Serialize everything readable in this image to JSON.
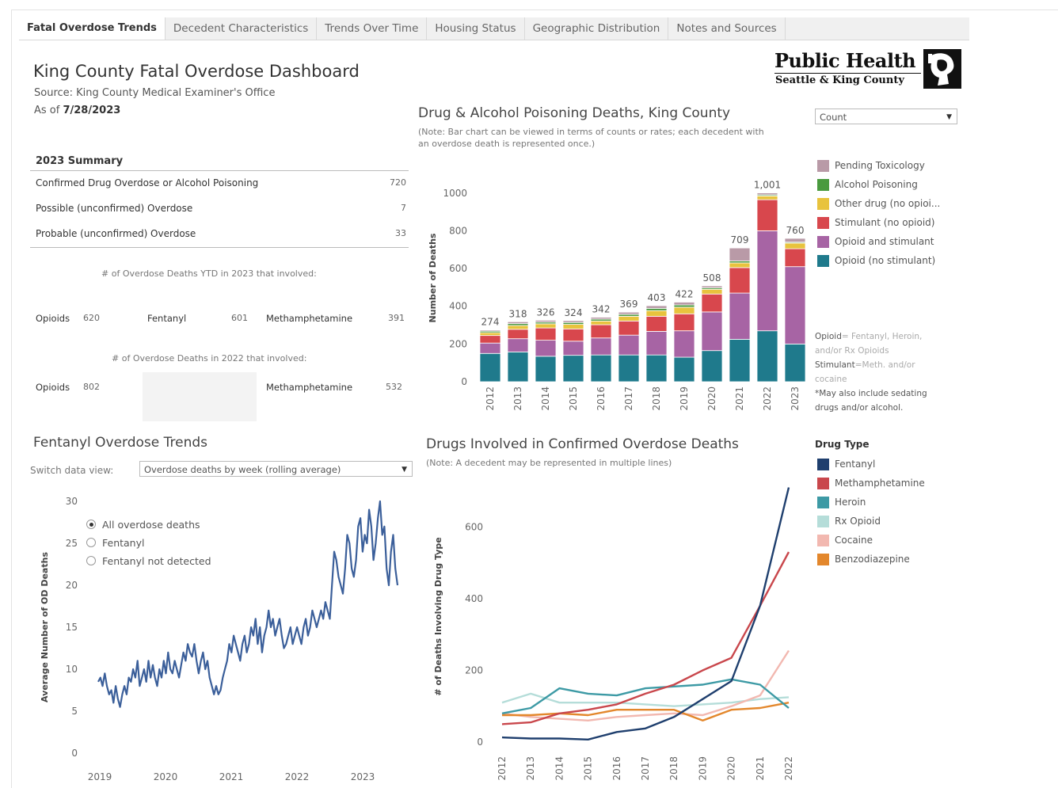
{
  "tabs": [
    "Fatal Overdose Trends",
    "Decedent Characteristics",
    "Trends Over Time",
    "Housing Status",
    "Geographic Distribution",
    "Notes and Sources"
  ],
  "header": {
    "title": "King County Fatal Overdose Dashboard",
    "source": "Source: King County Medical Examiner's Office",
    "asof_label": "As of ",
    "asof_date": "7/28/2023"
  },
  "logo": {
    "name": "Public Health",
    "sub": "Seattle & King County"
  },
  "summary": {
    "heading": "2023 Summary",
    "rows": [
      {
        "label": "Confirmed Drug Overdose or Alcohol Poisoning",
        "value": "720"
      },
      {
        "label": "Possible (unconfirmed) Overdose",
        "value": "7"
      },
      {
        "label": "Probable (unconfirmed) Overdose",
        "value": "33"
      }
    ],
    "ytd_note": "# of Overdose Deaths YTD in 2023 that involved:",
    "ytd": {
      "opioids_label": "Opioids",
      "opioids": "620",
      "fentanyl_label": "Fentanyl",
      "fentanyl": "601",
      "meth_label": "Methamphetamine",
      "meth": "391"
    },
    "y2022_note": "# of Overdose Deaths in 2022 that involved:",
    "y2022": {
      "opioids_label": "Opioids",
      "opioids": "802",
      "meth_label": "Methamphetamine",
      "meth": "532"
    }
  },
  "bar_panel": {
    "title": "Drug & Alcohol Poisoning Deaths, King County",
    "note1": "(Note: Bar chart can be viewed in terms of counts or rates; each decedent with",
    "note2": "an overdose death is represented once.)",
    "dropdown": "Count",
    "legend": [
      {
        "label": "Pending Toxicology",
        "color": "#b99aa7"
      },
      {
        "label": "Alcohol Poisoning",
        "color": "#4a9a3f"
      },
      {
        "label": "Other drug (no opioi...",
        "color": "#e8c33d"
      },
      {
        "label": "Stimulant (no opioid)",
        "color": "#d8474d"
      },
      {
        "label": "Opioid and stimulant",
        "color": "#a764a4"
      },
      {
        "label": "Opioid (no stimulant)",
        "color": "#1f7a8c"
      }
    ],
    "def_opioid_key": "Opioid",
    "def_opioid_val": "= Fentanyl, Heroin,",
    "def_opioid_val2": "and/or Rx Opioids",
    "def_stim_key": "Stimulant",
    "def_stim_val": "=Meth. and/or",
    "def_stim_val2": "cocaine",
    "def_may": "*May also include sedating",
    "def_may2": "drugs and/or alcohol."
  },
  "fent_panel": {
    "title": "Fentanyl Overdose Trends",
    "switch_label": "Switch data view:",
    "dropdown": "Overdose deaths by week (rolling average)",
    "radios": [
      {
        "label": "All overdose deaths",
        "checked": true
      },
      {
        "label": "Fentanyl",
        "checked": false
      },
      {
        "label": "Fentanyl not detected",
        "checked": false
      }
    ]
  },
  "drug_panel": {
    "title": "Drugs Involved in Confirmed Overdose Deaths",
    "note": "(Note: A decedent may be represented in multiple lines)",
    "legend_title": "Drug Type",
    "legend": [
      {
        "label": "Fentanyl",
        "color": "#1f3f6e"
      },
      {
        "label": "Methamphetamine",
        "color": "#c9474c"
      },
      {
        "label": "Heroin",
        "color": "#3d9aa5"
      },
      {
        "label": "Rx Opioid",
        "color": "#b5ddd9"
      },
      {
        "label": "Cocaine",
        "color": "#f2b8b0"
      },
      {
        "label": "Benzodiazepine",
        "color": "#e3872c"
      }
    ]
  },
  "chart_data": [
    {
      "type": "bar",
      "stacked": true,
      "categories": [
        "2012",
        "2013",
        "2014",
        "2015",
        "2016",
        "2017",
        "2018",
        "2019",
        "2020",
        "2021",
        "2022",
        "2023"
      ],
      "totals": [
        274,
        318,
        326,
        324,
        342,
        369,
        403,
        422,
        508,
        709,
        1001,
        760
      ],
      "series": [
        {
          "name": "Opioid (no stimulant)",
          "values": [
            150,
            158,
            135,
            140,
            142,
            142,
            142,
            130,
            165,
            225,
            270,
            200
          ]
        },
        {
          "name": "Opioid and stimulant",
          "values": [
            55,
            70,
            85,
            75,
            90,
            105,
            125,
            140,
            205,
            245,
            530,
            410
          ]
        },
        {
          "name": "Stimulant (no opioid)",
          "values": [
            40,
            50,
            65,
            65,
            70,
            75,
            80,
            90,
            95,
            135,
            165,
            95
          ]
        },
        {
          "name": "Other drug (no opioi...",
          "values": [
            15,
            20,
            22,
            24,
            20,
            25,
            30,
            35,
            25,
            25,
            20,
            30
          ]
        },
        {
          "name": "Alcohol Poisoning",
          "values": [
            8,
            10,
            9,
            10,
            10,
            10,
            12,
            12,
            8,
            10,
            6,
            5
          ]
        },
        {
          "name": "Pending Toxicology",
          "values": [
            6,
            10,
            10,
            10,
            10,
            12,
            14,
            15,
            10,
            69,
            10,
            20
          ]
        }
      ],
      "ylabel": "Number of Deaths",
      "ylim": [
        0,
        1100
      ],
      "yticks": [
        0,
        200,
        400,
        600,
        800,
        1000
      ],
      "data_labels": [
        "274",
        "318",
        "326",
        "324",
        "342",
        "369",
        "403",
        "422",
        "508",
        "709",
        "1,001",
        "760"
      ]
    },
    {
      "type": "line",
      "ylabel": "Average Number of OD Deaths",
      "xticks": [
        "2019",
        "2020",
        "2021",
        "2022",
        "2023"
      ],
      "yticks": [
        0,
        5,
        10,
        15,
        20,
        25,
        30
      ],
      "ylim": [
        0,
        30
      ],
      "series": [
        {
          "name": "All overdose deaths",
          "color": "#3b5f9a",
          "values": [
            8.5,
            9,
            8,
            9.5,
            8,
            7,
            7.5,
            6,
            8,
            6.5,
            5.5,
            7,
            8,
            7,
            9,
            8.5,
            10,
            9,
            11,
            8,
            9,
            10,
            8.5,
            11,
            9,
            10.5,
            9,
            8,
            10,
            9,
            11,
            9.5,
            12,
            10,
            9.5,
            11,
            10,
            9,
            10.5,
            12,
            11,
            13,
            12,
            11.5,
            13,
            11,
            9.5,
            11,
            12,
            10,
            11,
            9,
            8,
            7,
            8,
            7,
            7.5,
            9,
            10,
            11,
            13,
            12,
            14,
            13,
            12,
            11,
            13,
            14,
            12,
            13,
            15,
            14,
            16,
            13,
            15,
            12,
            14,
            15,
            17,
            15,
            16,
            14,
            15,
            16,
            14,
            12.5,
            13,
            14,
            15,
            13,
            14,
            15,
            14,
            13,
            15,
            16,
            14,
            15,
            17,
            16,
            15,
            16,
            17,
            16,
            18,
            17,
            16,
            20,
            24,
            23,
            21,
            20,
            19,
            22,
            26,
            25,
            22,
            21,
            23,
            27,
            28,
            24,
            26,
            25,
            29,
            27,
            23,
            25,
            28,
            30,
            26,
            27,
            22,
            20,
            24,
            26,
            22,
            20
          ]
        }
      ]
    },
    {
      "type": "line",
      "ylabel": "# of Deaths Involving Drug Type",
      "x": [
        "2012",
        "2013",
        "2014",
        "2015",
        "2016",
        "2017",
        "2018",
        "2019",
        "2020",
        "2021",
        "2022"
      ],
      "ylim": [
        0,
        700
      ],
      "yticks": [
        0,
        200,
        400,
        600
      ],
      "series": [
        {
          "name": "Fentanyl",
          "values": [
            13,
            10,
            10,
            7,
            28,
            38,
            70,
            120,
            170,
            380,
            710
          ]
        },
        {
          "name": "Methamphetamine",
          "values": [
            50,
            55,
            80,
            90,
            105,
            135,
            160,
            200,
            235,
            380,
            530
          ]
        },
        {
          "name": "Heroin",
          "values": [
            80,
            95,
            150,
            135,
            130,
            150,
            155,
            160,
            175,
            160,
            95
          ]
        },
        {
          "name": "Rx Opioid",
          "values": [
            110,
            135,
            110,
            110,
            110,
            105,
            100,
            105,
            110,
            120,
            125
          ]
        },
        {
          "name": "Cocaine",
          "values": [
            80,
            70,
            65,
            60,
            70,
            75,
            80,
            75,
            100,
            130,
            255
          ]
        },
        {
          "name": "Benzodiazepine",
          "values": [
            75,
            75,
            80,
            75,
            90,
            90,
            90,
            60,
            90,
            95,
            110
          ]
        }
      ]
    }
  ]
}
